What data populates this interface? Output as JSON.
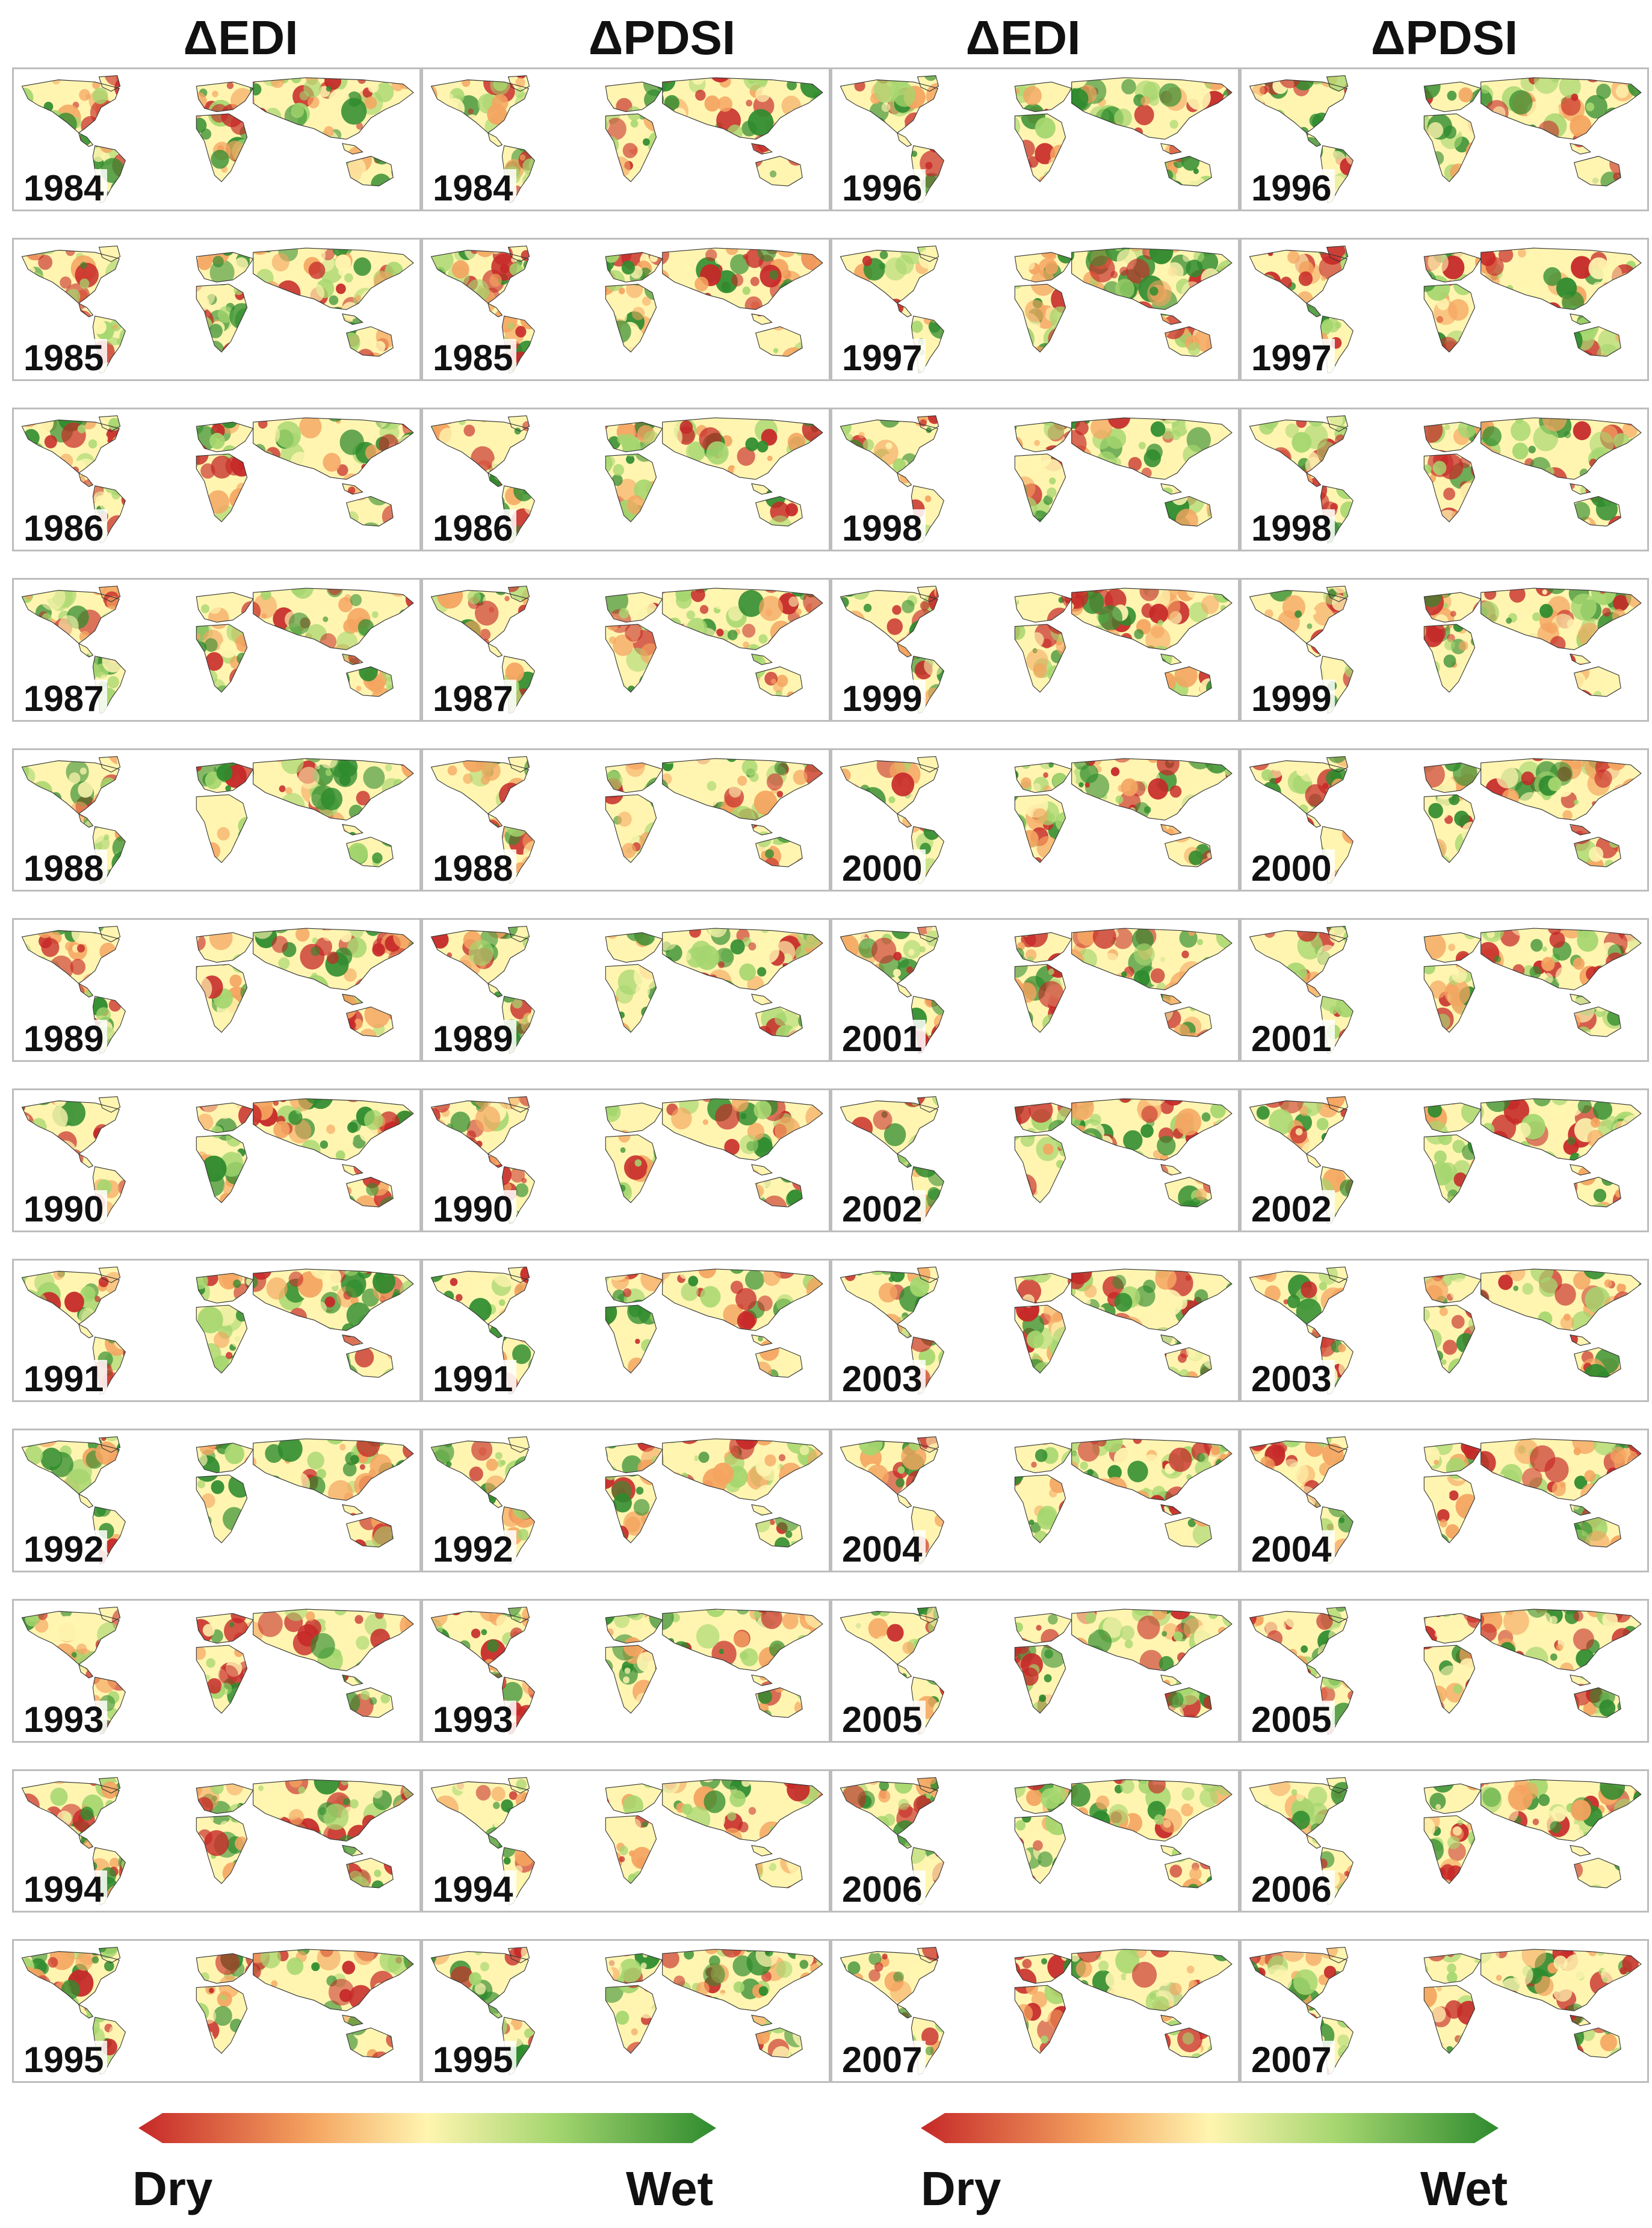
{
  "headers": {
    "col1": "ΔEDI",
    "col2": "ΔPDSI",
    "col3": "ΔEDI",
    "col4": "ΔPDSI"
  },
  "panels": [
    {
      "index": "ΔEDI",
      "year": "1984"
    },
    {
      "index": "ΔPDSI",
      "year": "1984"
    },
    {
      "index": "ΔEDI",
      "year": "1996"
    },
    {
      "index": "ΔPDSI",
      "year": "1996"
    },
    {
      "index": "ΔEDI",
      "year": "1985"
    },
    {
      "index": "ΔPDSI",
      "year": "1985"
    },
    {
      "index": "ΔEDI",
      "year": "1997"
    },
    {
      "index": "ΔPDSI",
      "year": "1997"
    },
    {
      "index": "ΔEDI",
      "year": "1986"
    },
    {
      "index": "ΔPDSI",
      "year": "1986"
    },
    {
      "index": "ΔEDI",
      "year": "1998"
    },
    {
      "index": "ΔPDSI",
      "year": "1998"
    },
    {
      "index": "ΔEDI",
      "year": "1987"
    },
    {
      "index": "ΔPDSI",
      "year": "1987"
    },
    {
      "index": "ΔEDI",
      "year": "1999"
    },
    {
      "index": "ΔPDSI",
      "year": "1999"
    },
    {
      "index": "ΔEDI",
      "year": "1988"
    },
    {
      "index": "ΔPDSI",
      "year": "1988"
    },
    {
      "index": "ΔEDI",
      "year": "2000"
    },
    {
      "index": "ΔPDSI",
      "year": "2000"
    },
    {
      "index": "ΔEDI",
      "year": "1989"
    },
    {
      "index": "ΔPDSI",
      "year": "1989"
    },
    {
      "index": "ΔEDI",
      "year": "2001"
    },
    {
      "index": "ΔPDSI",
      "year": "2001"
    },
    {
      "index": "ΔEDI",
      "year": "1990"
    },
    {
      "index": "ΔPDSI",
      "year": "1990"
    },
    {
      "index": "ΔEDI",
      "year": "2002"
    },
    {
      "index": "ΔPDSI",
      "year": "2002"
    },
    {
      "index": "ΔEDI",
      "year": "1991"
    },
    {
      "index": "ΔPDSI",
      "year": "1991"
    },
    {
      "index": "ΔEDI",
      "year": "2003"
    },
    {
      "index": "ΔPDSI",
      "year": "2003"
    },
    {
      "index": "ΔEDI",
      "year": "1992"
    },
    {
      "index": "ΔPDSI",
      "year": "1992"
    },
    {
      "index": "ΔEDI",
      "year": "2004"
    },
    {
      "index": "ΔPDSI",
      "year": "2004"
    },
    {
      "index": "ΔEDI",
      "year": "1993"
    },
    {
      "index": "ΔPDSI",
      "year": "1993"
    },
    {
      "index": "ΔEDI",
      "year": "2005"
    },
    {
      "index": "ΔPDSI",
      "year": "2005"
    },
    {
      "index": "ΔEDI",
      "year": "1994"
    },
    {
      "index": "ΔPDSI",
      "year": "1994"
    },
    {
      "index": "ΔEDI",
      "year": "2006"
    },
    {
      "index": "ΔPDSI",
      "year": "2006"
    },
    {
      "index": "ΔEDI",
      "year": "1995"
    },
    {
      "index": "ΔPDSI",
      "year": "1995"
    },
    {
      "index": "ΔEDI",
      "year": "2007"
    },
    {
      "index": "ΔPDSI",
      "year": "2007"
    }
  ],
  "legend": [
    {
      "low_label": "Dry",
      "high_label": "Wet"
    },
    {
      "low_label": "Dry",
      "high_label": "Wet"
    }
  ],
  "colors": {
    "dry": "#c62828",
    "dry_mid": "#f4a460",
    "neutral": "#fff5b0",
    "wet_mid": "#a5d66f",
    "wet": "#2e8b2e",
    "panel_border": "#bdbdbd",
    "coastline": "#333333"
  }
}
